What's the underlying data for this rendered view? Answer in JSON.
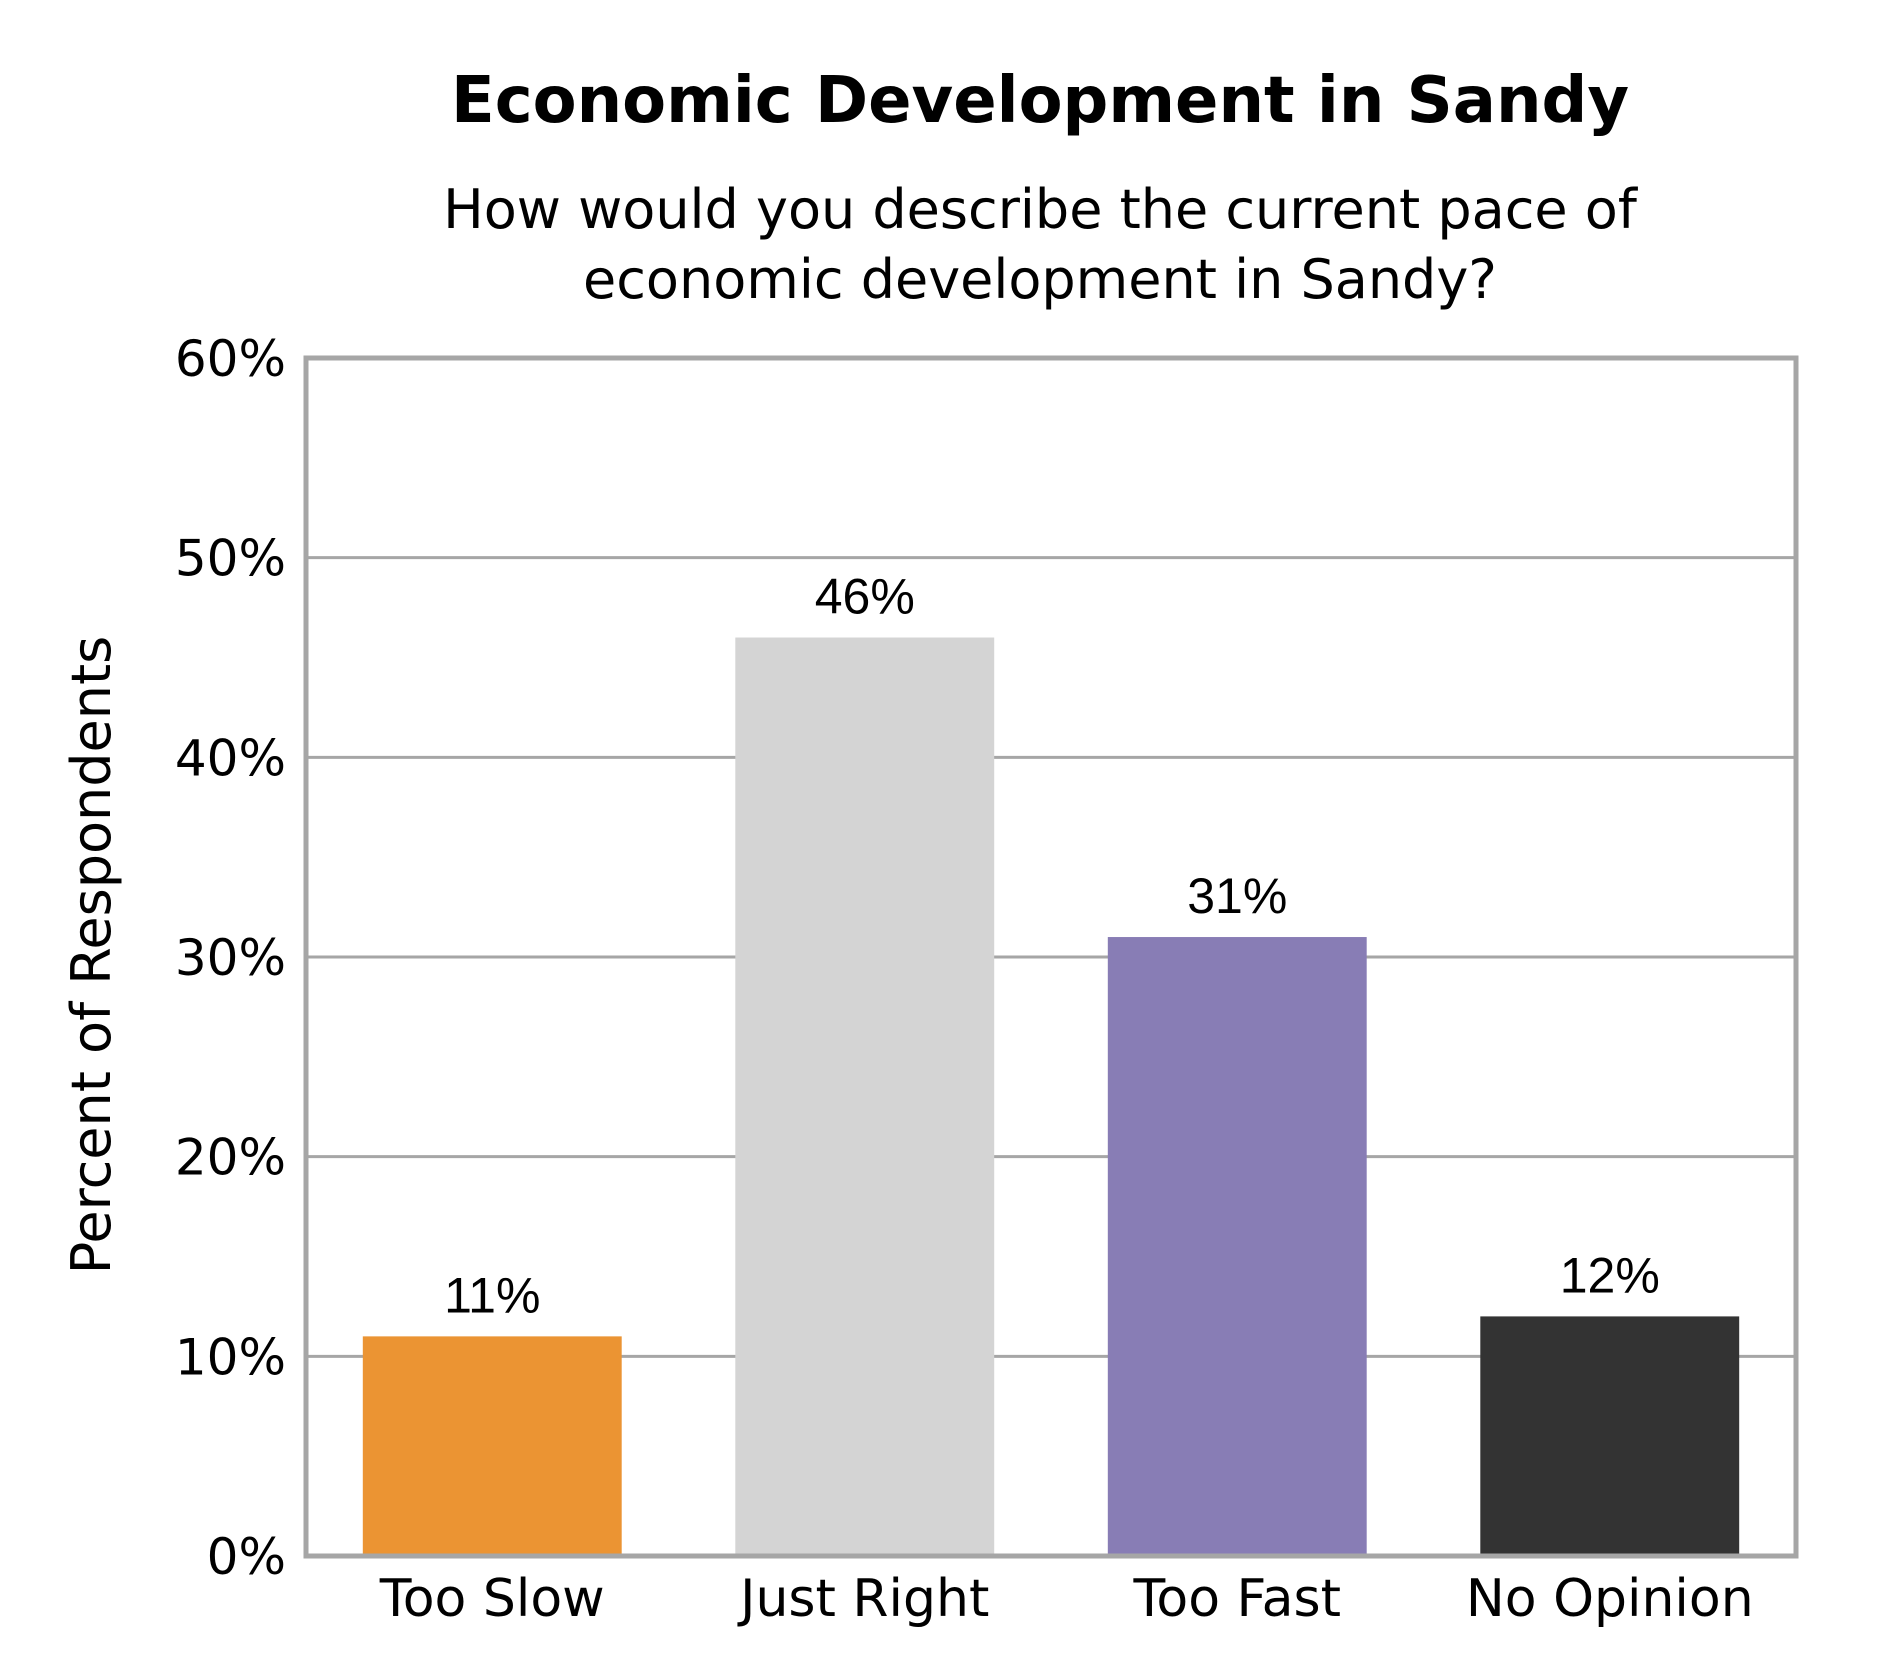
{
  "chart_data": {
    "type": "bar",
    "title": "Economic Development in Sandy",
    "subtitle_lines": [
      "How would you describe the current pace of",
      "economic development in Sandy?"
    ],
    "xlabel": "",
    "ylabel": "Percent of Respondents",
    "categories": [
      "Too Slow",
      "Just Right",
      "Too Fast",
      "No Opinion"
    ],
    "values": [
      11,
      46,
      31,
      12
    ],
    "value_labels": [
      "11%",
      "46%",
      "31%",
      "12%"
    ],
    "bar_colors": [
      "#eb9433",
      "#d4d4d4",
      "#887db5",
      "#333333"
    ],
    "ylim": [
      0,
      60
    ],
    "yticks": [
      0,
      10,
      20,
      30,
      40,
      50,
      60
    ],
    "ytick_labels": [
      "0%",
      "10%",
      "20%",
      "30%",
      "40%",
      "50%",
      "60%"
    ],
    "grid": true,
    "legend": "none"
  }
}
